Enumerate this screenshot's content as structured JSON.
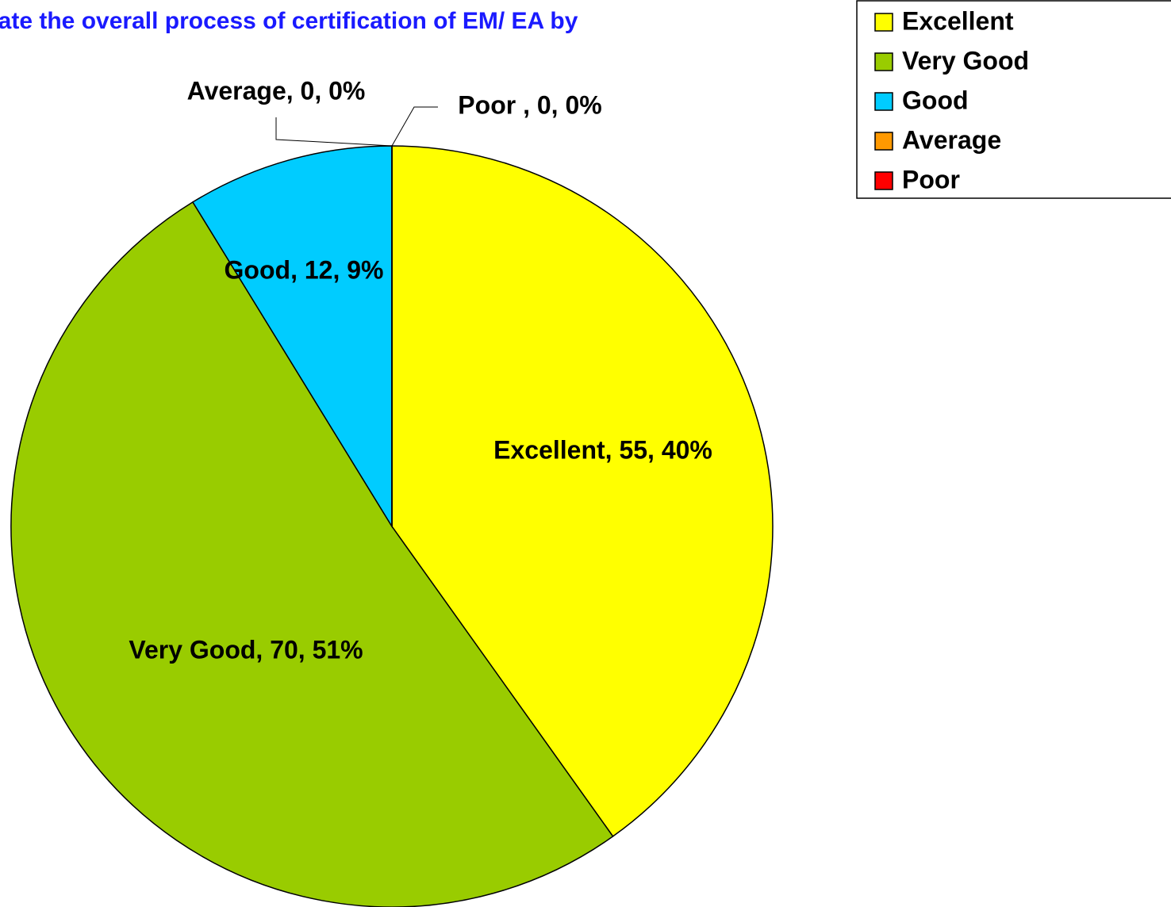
{
  "chart_data": {
    "type": "pie",
    "title": "rate the overall process of certification of EM/ EA by",
    "categories": [
      "Excellent",
      "Very Good",
      "Good",
      "Average",
      "Poor"
    ],
    "values": [
      55,
      70,
      12,
      0,
      0
    ],
    "value_labels": [
      "Excellent, 55, 40%",
      "Very Good, 70, 51%",
      "Good, 12, 9%",
      "Average, 0, 0%",
      "Poor , 0, 0%"
    ],
    "colors": [
      "#ffff00",
      "#99cc00",
      "#00ccff",
      "#ff9900",
      "#ff0000"
    ],
    "legend": "top-right"
  }
}
